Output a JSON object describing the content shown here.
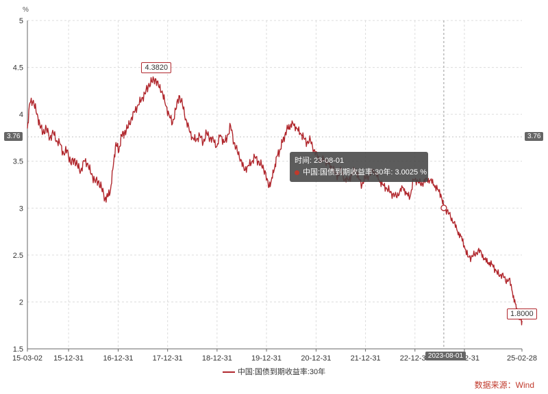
{
  "chart_data": {
    "type": "line",
    "unit": "%",
    "ylim": [
      1.5,
      5
    ],
    "yticks": [
      "5",
      "4.5",
      "4",
      "3.5",
      "3",
      "2.5",
      "2",
      "1.5"
    ],
    "xlim": [
      "2015-03-02",
      "2025-02-28"
    ],
    "xticks": [
      "15-03-02",
      "15-12-31",
      "16-12-31",
      "17-12-31",
      "18-12-31",
      "19-12-31",
      "20-12-31",
      "21-12-31",
      "22-12-31",
      "23-12-31",
      "25-02-28"
    ],
    "xtick_dates": [
      "2015-03-02",
      "2015-12-31",
      "2016-12-31",
      "2017-12-31",
      "2018-12-31",
      "2019-12-31",
      "2020-12-31",
      "2021-12-31",
      "2022-12-31",
      "2023-12-31",
      "2025-02-28"
    ],
    "grid": true,
    "series": [
      {
        "name": "中国:国债到期收益率:30年",
        "color": "#b0262c",
        "x": [
          "2015-03-02",
          "2015-03-20",
          "2015-04-15",
          "2015-05-10",
          "2015-06-01",
          "2015-06-25",
          "2015-07-20",
          "2015-08-15",
          "2015-09-10",
          "2015-10-05",
          "2015-10-30",
          "2015-11-25",
          "2015-12-20",
          "2016-01-15",
          "2016-02-10",
          "2016-03-05",
          "2016-03-30",
          "2016-04-25",
          "2016-05-20",
          "2016-06-15",
          "2016-07-10",
          "2016-08-05",
          "2016-08-30",
          "2016-09-25",
          "2016-10-15",
          "2016-11-05",
          "2016-11-25",
          "2016-12-15",
          "2017-01-05",
          "2017-01-25",
          "2017-02-15",
          "2017-03-10",
          "2017-04-05",
          "2017-04-30",
          "2017-05-25",
          "2017-06-20",
          "2017-07-15",
          "2017-08-10",
          "2017-09-05",
          "2017-09-30",
          "2017-10-25",
          "2017-11-20",
          "2017-12-15",
          "2018-01-10",
          "2018-02-05",
          "2018-03-01",
          "2018-03-25",
          "2018-04-20",
          "2018-05-15",
          "2018-06-10",
          "2018-07-05",
          "2018-07-30",
          "2018-08-25",
          "2018-09-20",
          "2018-10-15",
          "2018-11-10",
          "2018-12-05",
          "2018-12-30",
          "2019-01-25",
          "2019-02-20",
          "2019-03-15",
          "2019-04-10",
          "2019-05-05",
          "2019-05-30",
          "2019-06-25",
          "2019-07-20",
          "2019-08-15",
          "2019-09-10",
          "2019-10-05",
          "2019-10-30",
          "2019-11-25",
          "2019-12-20",
          "2020-01-15",
          "2020-02-05",
          "2020-02-25",
          "2020-03-15",
          "2020-04-05",
          "2020-04-25",
          "2020-05-15",
          "2020-06-05",
          "2020-06-25",
          "2020-07-15",
          "2020-08-10",
          "2020-09-05",
          "2020-09-30",
          "2020-10-25",
          "2020-11-20",
          "2020-12-15",
          "2021-01-10",
          "2021-02-05",
          "2021-03-01",
          "2021-03-25",
          "2021-04-20",
          "2021-05-15",
          "2021-06-10",
          "2021-07-05",
          "2021-07-30",
          "2021-08-25",
          "2021-09-20",
          "2021-10-15",
          "2021-11-10",
          "2021-12-05",
          "2021-12-30",
          "2022-01-25",
          "2022-02-20",
          "2022-03-15",
          "2022-04-10",
          "2022-05-05",
          "2022-05-30",
          "2022-06-25",
          "2022-07-20",
          "2022-08-15",
          "2022-09-10",
          "2022-10-05",
          "2022-10-30",
          "2022-11-25",
          "2022-12-20",
          "2023-01-15",
          "2023-02-10",
          "2023-03-05",
          "2023-03-30",
          "2023-04-25",
          "2023-05-20",
          "2023-06-15",
          "2023-07-10",
          "2023-08-01",
          "2023-08-25",
          "2023-09-20",
          "2023-10-15",
          "2023-11-10",
          "2023-12-05",
          "2023-12-30",
          "2024-01-25",
          "2024-02-20",
          "2024-03-15",
          "2024-04-10",
          "2024-05-05",
          "2024-05-30",
          "2024-06-25",
          "2024-07-20",
          "2024-08-15",
          "2024-09-10",
          "2024-10-05",
          "2024-10-30",
          "2024-11-25",
          "2024-12-20",
          "2025-01-10",
          "2025-01-30",
          "2025-02-15",
          "2025-02-28"
        ],
        "y": [
          3.85,
          4.12,
          4.15,
          4.0,
          3.9,
          3.8,
          3.85,
          3.75,
          3.8,
          3.72,
          3.68,
          3.58,
          3.62,
          3.48,
          3.52,
          3.45,
          3.4,
          3.5,
          3.48,
          3.36,
          3.3,
          3.28,
          3.22,
          3.1,
          3.12,
          3.2,
          3.45,
          3.7,
          3.6,
          3.78,
          3.8,
          3.85,
          3.95,
          4.02,
          4.1,
          4.15,
          4.22,
          4.3,
          4.35,
          4.38,
          4.3,
          4.25,
          4.1,
          4.0,
          3.9,
          4.05,
          4.2,
          4.1,
          3.95,
          3.82,
          3.75,
          3.72,
          3.78,
          3.7,
          3.8,
          3.75,
          3.72,
          3.66,
          3.78,
          3.7,
          3.75,
          3.88,
          3.7,
          3.6,
          3.52,
          3.4,
          3.45,
          3.48,
          3.55,
          3.5,
          3.45,
          3.4,
          3.22,
          3.3,
          3.4,
          3.55,
          3.6,
          3.7,
          3.78,
          3.85,
          3.88,
          3.9,
          3.85,
          3.8,
          3.75,
          3.7,
          3.72,
          3.62,
          3.55,
          3.5,
          3.52,
          3.48,
          3.45,
          3.38,
          3.35,
          3.4,
          3.3,
          3.3,
          3.35,
          3.42,
          3.32,
          3.25,
          3.32,
          3.35,
          3.4,
          3.38,
          3.3,
          3.25,
          3.22,
          3.18,
          3.15,
          3.12,
          3.18,
          3.22,
          3.15,
          3.12,
          3.3,
          3.3,
          3.25,
          3.28,
          3.3,
          3.3,
          3.25,
          3.2,
          3.15,
          3.0025,
          2.98,
          2.9,
          2.85,
          2.75,
          2.7,
          2.6,
          2.48,
          2.48,
          2.5,
          2.55,
          2.52,
          2.45,
          2.42,
          2.4,
          2.35,
          2.28,
          2.3,
          2.22,
          2.25,
          2.1,
          1.98,
          1.85,
          1.82,
          1.8
        ]
      }
    ],
    "peak_label": "4.3820",
    "peak_x": "2017-09-30",
    "peak_y": 4.382,
    "end_label": "1.8000",
    "end_x": "2025-02-28",
    "end_y": 1.8,
    "crosshair_value": "3.76",
    "crosshair_date": "2023-08-01",
    "crosshair_date_label": "2023-08-01",
    "tooltip": {
      "time_label": "时间:",
      "time_value": "23-08-01",
      "series_name": "中国:国债到期收益率:30年:",
      "value": "3.0025",
      "unit": "%"
    },
    "legend": "中国:国债到期收益率:30年",
    "source": "数据来源：Wind"
  }
}
